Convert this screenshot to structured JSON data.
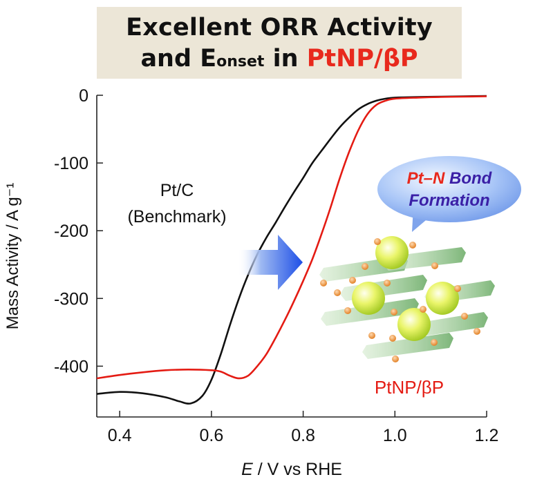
{
  "banner": {
    "line1": "Excellent ORR Activity",
    "line2_prefix": "and E",
    "line2_sub": "onset",
    "line2_mid": " in ",
    "line2_highlight": "PtNP/βP"
  },
  "colors": {
    "ptc": "#111111",
    "ptnp": "#e41b13",
    "banner_bg": "#ece6d7",
    "arrow": "#2f5fe0",
    "bubble": "#8fb6f5",
    "bubble_red_text": "#e8291d",
    "bubble_blue_text": "#3a1fa6"
  },
  "annotations": {
    "ptc_line1": "Pt/C",
    "ptc_line2": "(Benchmark)",
    "ptnp_label": "PtNP/βP",
    "bubble_red": "Pt–N",
    "bubble_blue1": " Bond",
    "bubble_blue2": "Formation"
  },
  "chart_data": {
    "type": "line",
    "xlabel_italic": "E",
    "xlabel_rest": " / V vs RHE",
    "ylabel": "Mass Activity / A g⁻¹",
    "xlim": [
      0.35,
      1.2
    ],
    "ylim": [
      -475,
      0
    ],
    "xticks": [
      0.4,
      0.6,
      0.8,
      1.0,
      1.2
    ],
    "xtick_labels": [
      "0.4",
      "0.6",
      "0.8",
      "1.0",
      "1.2"
    ],
    "yticks": [
      0,
      -100,
      -200,
      -300,
      -400
    ],
    "ytick_labels": [
      "0",
      "-100",
      "-200",
      "-300",
      "-400"
    ],
    "grid": false,
    "series": [
      {
        "name": "Pt/C",
        "color": "#111111",
        "x": [
          0.35,
          0.4,
          0.45,
          0.5,
          0.53,
          0.555,
          0.58,
          0.6,
          0.62,
          0.64,
          0.66,
          0.68,
          0.7,
          0.72,
          0.74,
          0.76,
          0.78,
          0.8,
          0.82,
          0.84,
          0.86,
          0.88,
          0.9,
          0.92,
          0.94,
          0.96,
          0.98,
          1.0,
          1.05,
          1.1,
          1.15,
          1.2
        ],
        "y": [
          -441,
          -438,
          -440,
          -446,
          -452,
          -455,
          -444,
          -420,
          -383,
          -340,
          -300,
          -265,
          -235,
          -210,
          -188,
          -165,
          -143,
          -122,
          -100,
          -82,
          -64,
          -47,
          -33,
          -21,
          -13,
          -8,
          -5,
          -3.5,
          -2.5,
          -2,
          -1.5,
          -1
        ]
      },
      {
        "name": "PtNP/βP",
        "color": "#e41b13",
        "x": [
          0.35,
          0.4,
          0.45,
          0.5,
          0.55,
          0.6,
          0.62,
          0.64,
          0.66,
          0.68,
          0.7,
          0.72,
          0.74,
          0.76,
          0.78,
          0.8,
          0.82,
          0.84,
          0.86,
          0.88,
          0.9,
          0.92,
          0.94,
          0.96,
          0.98,
          1.0,
          1.05,
          1.1,
          1.15,
          1.2
        ],
        "y": [
          -418,
          -413,
          -409,
          -406,
          -405,
          -406,
          -408,
          -414,
          -418,
          -414,
          -400,
          -382,
          -358,
          -332,
          -304,
          -274,
          -242,
          -205,
          -165,
          -122,
          -84,
          -52,
          -28,
          -14,
          -8,
          -5,
          -3.5,
          -2.5,
          -2,
          -1.5
        ]
      }
    ]
  }
}
